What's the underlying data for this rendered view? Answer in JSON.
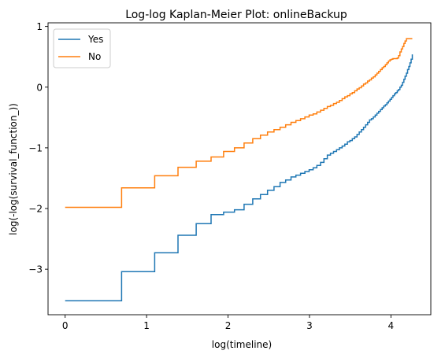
{
  "chart_data": {
    "type": "line",
    "step": true,
    "title": "Log-log Kaplan-Meier Plot: onlineBackup",
    "xlabel": "log(timeline)",
    "ylabel": "log(-log(survival_function_))",
    "xlim": [
      -0.21,
      4.49
    ],
    "ylim": [
      -3.75,
      1.06
    ],
    "xticks": [
      0,
      1,
      2,
      3,
      4
    ],
    "xtick_labels": [
      "0",
      "1",
      "2",
      "3",
      "4"
    ],
    "yticks": [
      -3,
      -2,
      -1,
      0,
      1
    ],
    "ytick_labels": [
      "−3",
      "−2",
      "−1",
      "0",
      "1"
    ],
    "grid": false,
    "legend": {
      "location": "top-left"
    },
    "series": [
      {
        "name": "Yes",
        "color": "#1f77b4",
        "x": [
          0.0,
          0.693,
          1.099,
          1.386,
          1.609,
          1.792,
          1.946,
          2.079,
          2.197,
          2.303,
          2.398,
          2.485,
          2.565,
          2.639,
          2.708,
          2.773,
          2.833,
          2.89,
          2.944,
          2.996,
          3.045,
          3.091,
          3.136,
          3.178,
          3.219,
          3.258,
          3.296,
          3.332,
          3.367,
          3.401,
          3.434,
          3.466,
          3.497,
          3.526,
          3.555,
          3.584,
          3.611,
          3.638,
          3.664,
          3.689,
          3.714,
          3.738,
          3.761,
          3.784,
          3.807,
          3.829,
          3.85,
          3.871,
          3.892,
          3.912,
          3.932,
          3.951,
          3.97,
          3.989,
          4.007,
          4.025,
          4.043,
          4.06,
          4.078,
          4.094,
          4.111,
          4.127,
          4.143,
          4.159,
          4.174,
          4.19,
          4.205,
          4.22,
          4.234,
          4.248,
          4.263
        ],
        "y": [
          -3.52,
          -3.04,
          -2.73,
          -2.44,
          -2.25,
          -2.1,
          -2.06,
          -2.02,
          -1.93,
          -1.84,
          -1.77,
          -1.7,
          -1.64,
          -1.57,
          -1.53,
          -1.48,
          -1.45,
          -1.42,
          -1.39,
          -1.36,
          -1.33,
          -1.29,
          -1.24,
          -1.18,
          -1.12,
          -1.09,
          -1.06,
          -1.03,
          -1.0,
          -0.97,
          -0.94,
          -0.9,
          -0.88,
          -0.85,
          -0.82,
          -0.78,
          -0.74,
          -0.7,
          -0.66,
          -0.62,
          -0.58,
          -0.54,
          -0.52,
          -0.49,
          -0.46,
          -0.43,
          -0.4,
          -0.37,
          -0.34,
          -0.31,
          -0.29,
          -0.26,
          -0.23,
          -0.2,
          -0.17,
          -0.14,
          -0.11,
          -0.09,
          -0.06,
          -0.04,
          0.0,
          0.03,
          0.08,
          0.13,
          0.18,
          0.23,
          0.29,
          0.34,
          0.4,
          0.46,
          0.54
        ]
      },
      {
        "name": "No",
        "color": "#ff7f0e",
        "x": [
          0.0,
          0.693,
          1.099,
          1.386,
          1.609,
          1.792,
          1.946,
          2.079,
          2.197,
          2.303,
          2.398,
          2.485,
          2.565,
          2.639,
          2.708,
          2.773,
          2.833,
          2.89,
          2.944,
          2.996,
          3.045,
          3.091,
          3.136,
          3.178,
          3.219,
          3.258,
          3.296,
          3.332,
          3.367,
          3.401,
          3.434,
          3.466,
          3.497,
          3.526,
          3.555,
          3.584,
          3.611,
          3.638,
          3.664,
          3.689,
          3.714,
          3.738,
          3.761,
          3.784,
          3.807,
          3.829,
          3.85,
          3.871,
          3.892,
          3.912,
          3.932,
          3.951,
          3.97,
          3.989,
          4.007,
          4.025,
          4.043,
          4.06,
          4.078,
          4.094,
          4.111,
          4.127,
          4.143,
          4.159,
          4.174,
          4.19,
          4.205,
          4.22,
          4.234,
          4.248,
          4.263
        ],
        "y": [
          -1.98,
          -1.66,
          -1.46,
          -1.32,
          -1.22,
          -1.15,
          -1.06,
          -1.0,
          -0.92,
          -0.85,
          -0.79,
          -0.74,
          -0.7,
          -0.66,
          -0.62,
          -0.58,
          -0.55,
          -0.52,
          -0.49,
          -0.46,
          -0.44,
          -0.41,
          -0.38,
          -0.35,
          -0.32,
          -0.3,
          -0.27,
          -0.25,
          -0.22,
          -0.19,
          -0.16,
          -0.14,
          -0.11,
          -0.09,
          -0.06,
          -0.03,
          -0.01,
          0.02,
          0.05,
          0.07,
          0.1,
          0.12,
          0.15,
          0.17,
          0.2,
          0.23,
          0.26,
          0.29,
          0.32,
          0.34,
          0.37,
          0.4,
          0.43,
          0.45,
          0.46,
          0.47,
          0.47,
          0.47,
          0.48,
          0.52,
          0.58,
          0.63,
          0.67,
          0.72,
          0.76,
          0.8,
          0.8,
          0.8,
          0.8,
          0.8,
          0.8
        ]
      }
    ]
  }
}
